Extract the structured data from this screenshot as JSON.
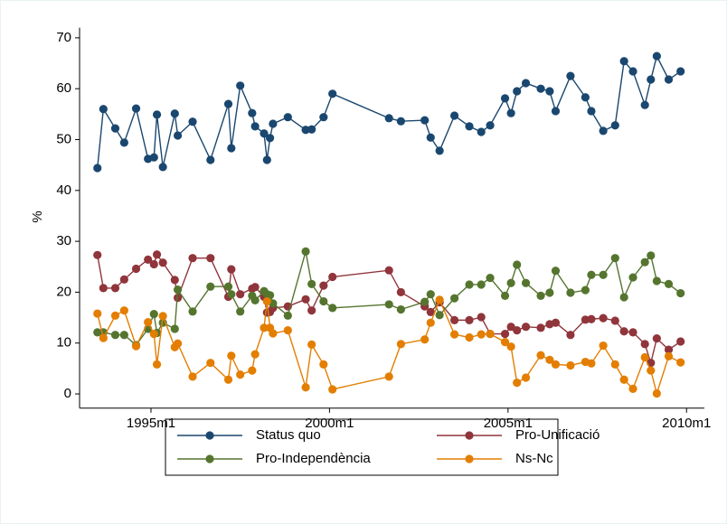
{
  "chart_data": {
    "type": "line",
    "y_label": "%",
    "x": [
      402,
      404,
      408,
      411,
      415,
      419,
      421,
      422,
      424,
      428,
      429,
      434,
      440,
      446,
      447,
      450,
      454,
      455,
      458,
      459,
      460,
      461,
      466,
      472,
      474,
      478,
      481,
      500,
      504,
      512,
      514,
      517,
      522,
      527,
      531,
      534,
      539,
      541,
      543,
      546,
      551,
      554,
      556,
      561,
      566,
      568,
      572,
      576,
      579,
      582,
      586,
      588,
      590,
      594,
      598
    ],
    "series": [
      {
        "name": "Status quo",
        "color": "#1a476f",
        "values": [
          44.4,
          56.0,
          52.2,
          49.4,
          56.1,
          46.2,
          46.5,
          54.9,
          44.6,
          55.1,
          50.8,
          53.5,
          46.0,
          57.0,
          48.3,
          60.6,
          55.2,
          52.6,
          51.2,
          46.0,
          50.3,
          53.1,
          54.4,
          51.9,
          52.0,
          54.4,
          59.0,
          54.2,
          53.6,
          53.8,
          50.4,
          47.8,
          54.7,
          52.6,
          51.5,
          52.8,
          58.1,
          55.2,
          59.5,
          61.1,
          60.0,
          59.5,
          55.6,
          62.5,
          58.3,
          55.6,
          51.7,
          52.8,
          65.4,
          63.4,
          56.8,
          61.8,
          66.4,
          61.8,
          63.4
        ]
      },
      {
        "name": "Pro-Unificació",
        "color": "#90353b",
        "values": [
          27.3,
          20.8,
          20.8,
          22.5,
          24.6,
          26.4,
          25.5,
          27.4,
          25.8,
          22.4,
          18.9,
          26.7,
          26.7,
          19.1,
          24.5,
          19.6,
          20.7,
          21.0,
          19.1,
          16.0,
          16.1,
          16.9,
          17.2,
          18.6,
          16.4,
          21.3,
          23.0,
          24.3,
          20.0,
          17.2,
          16.1,
          18.0,
          14.5,
          14.5,
          15.1,
          11.8,
          11.8,
          13.2,
          12.5,
          13.2,
          13.0,
          13.7,
          14.0,
          11.6,
          14.6,
          14.7,
          14.9,
          14.4,
          12.3,
          12.1,
          9.8,
          6.1,
          10.9,
          8.7,
          10.3
        ]
      },
      {
        "name": "Pro-Independència",
        "color": "#55752f",
        "values": [
          12.1,
          12.1,
          11.6,
          11.6,
          9.6,
          12.8,
          15.7,
          12.0,
          14.0,
          12.8,
          20.5,
          16.2,
          21.1,
          21.1,
          19.6,
          16.2,
          19.3,
          18.4,
          20.2,
          19.6,
          19.4,
          17.8,
          15.4,
          28.0,
          21.6,
          18.2,
          16.9,
          17.6,
          16.6,
          18.1,
          19.6,
          15.5,
          18.8,
          21.5,
          21.5,
          22.8,
          19.3,
          21.8,
          25.4,
          21.8,
          19.3,
          19.9,
          24.2,
          19.9,
          20.4,
          23.4,
          23.4,
          26.7,
          19.0,
          22.9,
          25.9,
          27.2,
          22.2,
          21.6,
          19.8
        ]
      },
      {
        "name": "Ns-Nc",
        "color": "#e37e00",
        "values": [
          15.8,
          11.0,
          15.4,
          16.4,
          9.4,
          14.1,
          11.8,
          5.8,
          15.3,
          9.2,
          9.9,
          3.4,
          6.1,
          2.8,
          7.5,
          3.8,
          4.6,
          7.8,
          13.0,
          18.2,
          13.0,
          11.9,
          12.5,
          1.3,
          9.7,
          5.8,
          0.9,
          3.4,
          9.8,
          10.7,
          14.0,
          18.5,
          11.7,
          11.1,
          11.7,
          11.8,
          10.2,
          9.3,
          2.2,
          3.2,
          7.6,
          6.7,
          5.8,
          5.6,
          6.3,
          6.0,
          9.5,
          5.8,
          2.8,
          1.0,
          7.2,
          4.6,
          0.1,
          7.4,
          6.2
        ]
      }
    ],
    "xlim": [
      396,
      606
    ],
    "xticks": [
      {
        "value": 420,
        "label": "1995m1"
      },
      {
        "value": 480,
        "label": "2000m1"
      },
      {
        "value": 540,
        "label": "2005m1"
      },
      {
        "value": 600,
        "label": "2010m1"
      }
    ],
    "ylim": [
      -2.8,
      72
    ],
    "yticks": [
      0,
      10,
      20,
      30,
      40,
      50,
      60,
      70
    ],
    "grid": false,
    "legend": "bottom"
  }
}
